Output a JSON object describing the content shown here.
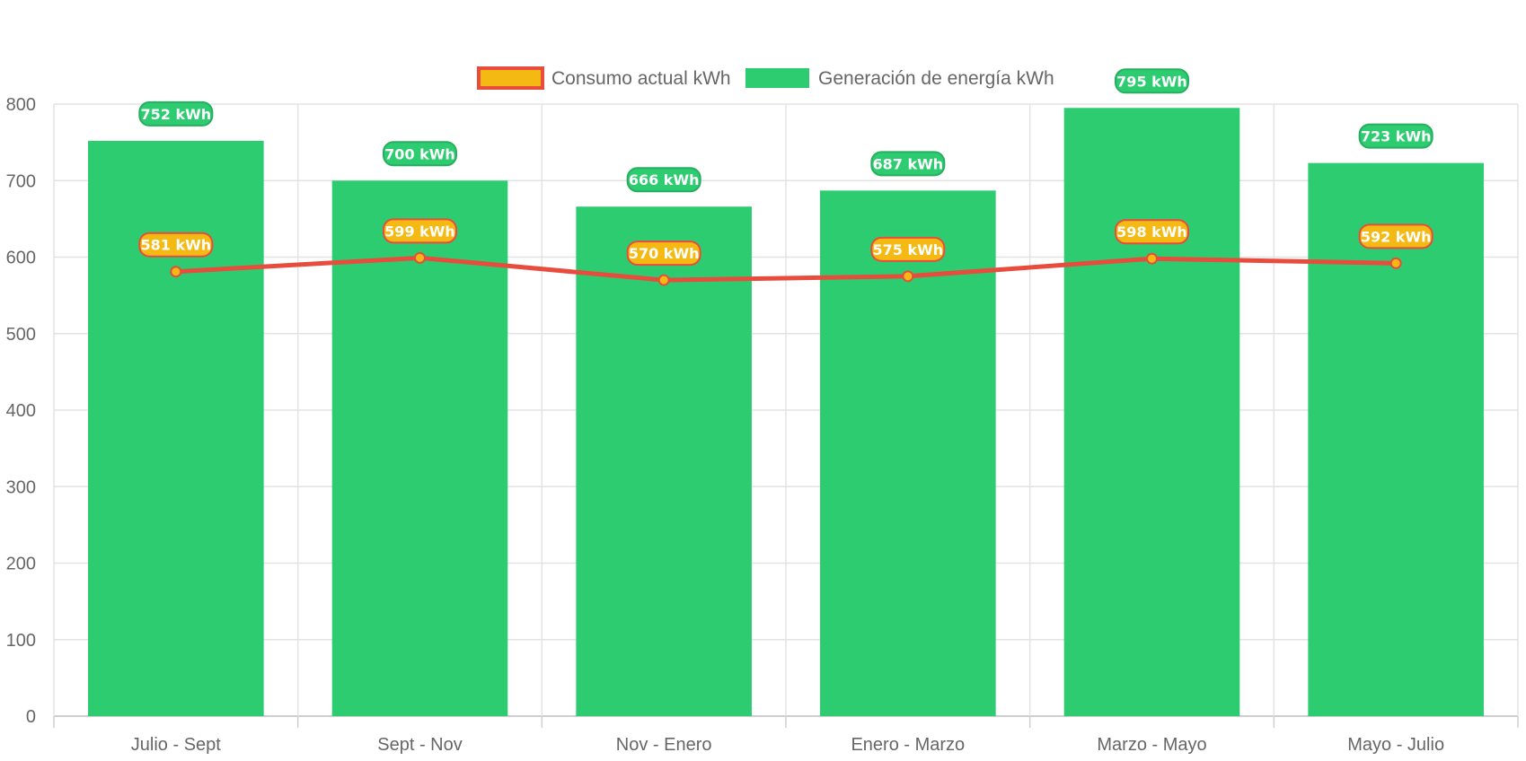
{
  "chart_data": {
    "type": "bar",
    "categories": [
      "Julio - Sept",
      "Sept - Nov",
      "Nov - Enero",
      "Enero - Marzo",
      "Marzo - Mayo",
      "Mayo - Julio"
    ],
    "series": [
      {
        "name": "Consumo actual kWh",
        "type": "line",
        "values": [
          581,
          599,
          570,
          575,
          598,
          592
        ],
        "labels": [
          "581 kWh",
          "599 kWh",
          "570 kWh",
          "575 kWh",
          "598 kWh",
          "592 kWh"
        ],
        "line_color": "#e74c3c",
        "fill_color": "#f5b914"
      },
      {
        "name": "Generación de energía kWh",
        "type": "bar",
        "values": [
          752,
          700,
          666,
          687,
          795,
          723
        ],
        "labels": [
          "752 kWh",
          "700 kWh",
          "666 kWh",
          "687 kWh",
          "795 kWh",
          "723 kWh"
        ],
        "fill_color": "#2ecc71",
        "label_border_color": "#27ae60"
      }
    ],
    "ylim": [
      0,
      800
    ],
    "y_ticks": [
      0,
      100,
      200,
      300,
      400,
      500,
      600,
      700,
      800
    ],
    "grid": true,
    "legend_position": "top-center",
    "xlabel": "",
    "ylabel": "",
    "title": ""
  }
}
